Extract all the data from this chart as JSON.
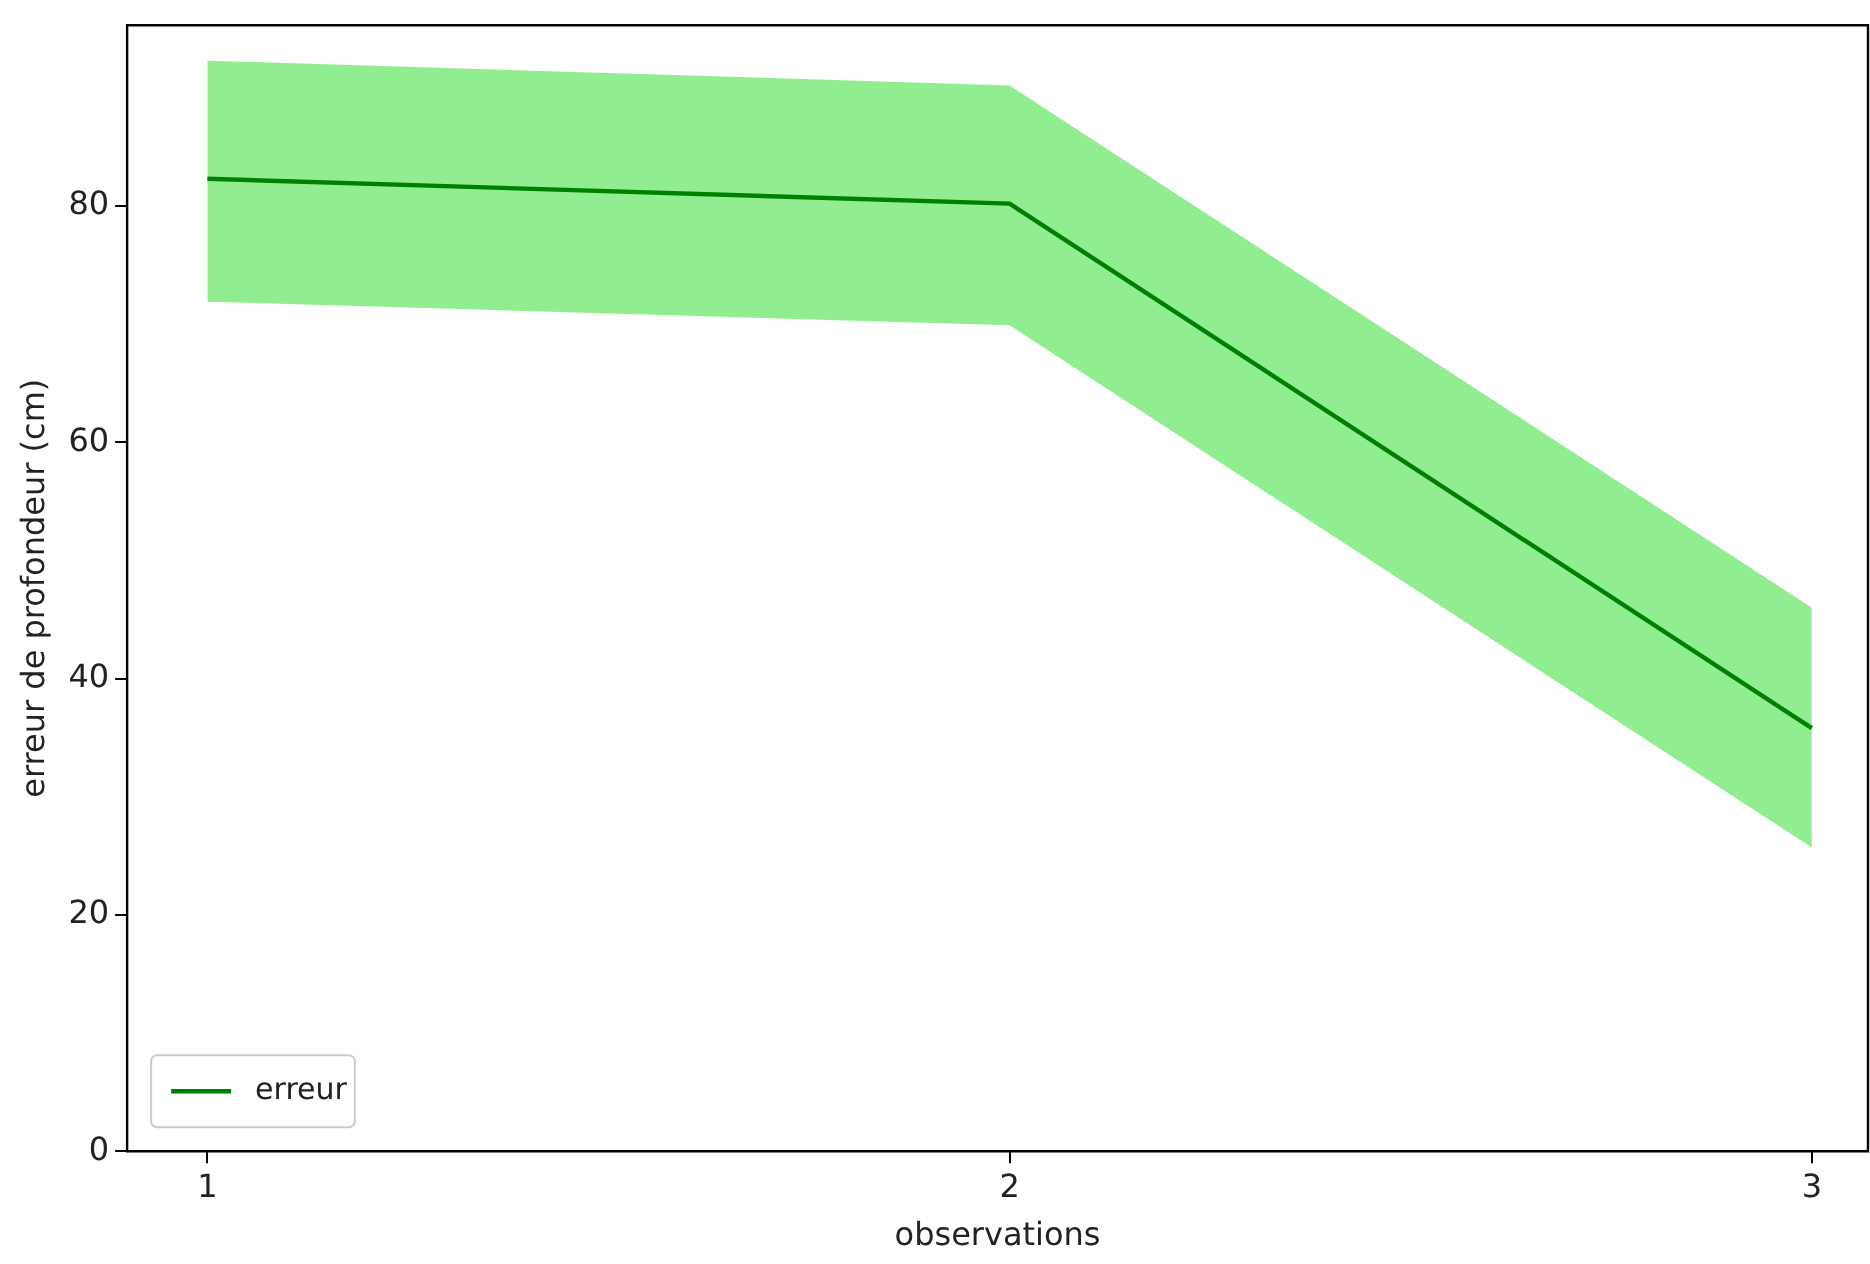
{
  "chart_data": {
    "type": "line",
    "xlabel": "observations",
    "ylabel": "erreur de profondeur (cm)",
    "x": [
      1,
      2,
      3
    ],
    "series": [
      {
        "name": "erreur",
        "color": "#008000",
        "values": [
          82.3,
          80.2,
          35.8
        ],
        "lower": [
          71.9,
          69.9,
          25.7
        ],
        "upper": [
          92.3,
          90.2,
          46.0
        ]
      }
    ],
    "xlim": [
      0.9,
      3.07
    ],
    "xticks": [
      1,
      2,
      3
    ],
    "ylim": [
      0,
      95.3
    ],
    "yticks": [
      0,
      20,
      40,
      60,
      80
    ],
    "grid": false,
    "legend": "bottom left",
    "marker": "none",
    "line_style": "solid"
  }
}
